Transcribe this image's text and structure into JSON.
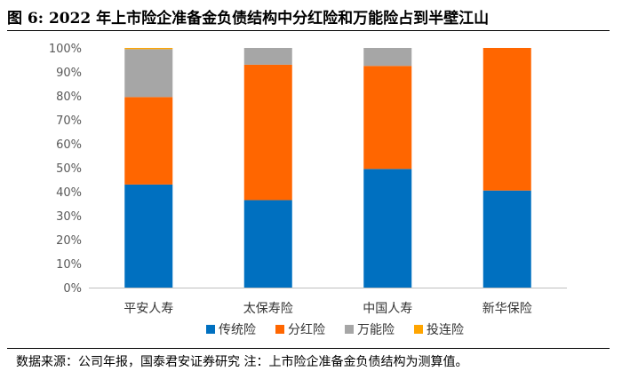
{
  "figure": {
    "title": "图 6:  2022 年上市险企准备金负债结构中分红险和万能险占到半壁江山",
    "source": "数据来源：公司年报，国泰君安证券研究 注：上市险企准备金负债结构为测算值。"
  },
  "chart_data": {
    "type": "bar",
    "stacked": true,
    "categories": [
      "平安人寿",
      "太保寿险",
      "中国人寿",
      "新华保险"
    ],
    "series": [
      {
        "name": "传统险",
        "color": "#0070C0",
        "values": [
          43,
          36.5,
          49.5,
          40.5
        ]
      },
      {
        "name": "分红险",
        "color": "#FF6600",
        "values": [
          36.5,
          56.5,
          43,
          59.5
        ]
      },
      {
        "name": "万能险",
        "color": "#A6A6A6",
        "values": [
          20,
          7,
          7.5,
          0
        ]
      },
      {
        "name": "投连险",
        "color": "#FFA500",
        "values": [
          0.5,
          0,
          0,
          0
        ]
      }
    ],
    "ylim": [
      0,
      100
    ],
    "yticks": [
      "0%",
      "10%",
      "20%",
      "30%",
      "40%",
      "50%",
      "60%",
      "70%",
      "80%",
      "90%",
      "100%"
    ],
    "xlabel": "",
    "ylabel": "",
    "legend": "bottom",
    "grid": false
  }
}
